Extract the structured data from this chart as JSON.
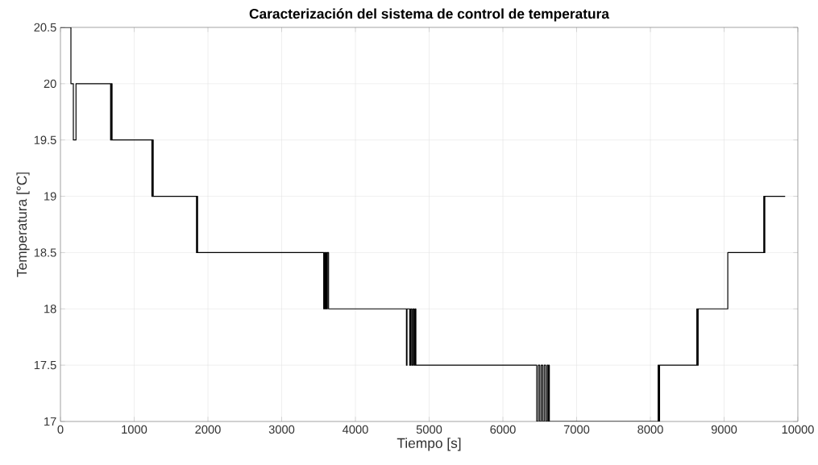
{
  "chart_data": {
    "type": "step",
    "title": "Caracterización del sistema de control de temperatura",
    "xlabel": "Tiempo [s]",
    "ylabel": "Temperatura [°C]",
    "x": [
      0,
      142,
      175,
      211,
      680,
      690,
      700,
      1240,
      1250,
      1258,
      1845,
      1852,
      1860,
      3570,
      3580,
      3590,
      3600,
      3610,
      3620,
      3636,
      4692,
      4700,
      4736,
      4750,
      4765,
      4780,
      4795,
      4808,
      4820,
      6459,
      6480,
      6500,
      6520,
      6540,
      6560,
      6580,
      6600,
      6615,
      6625,
      6630,
      8105,
      8115,
      8125,
      8630,
      8640,
      8648,
      9050,
      9538,
      9545,
      9552,
      9828
    ],
    "values": [
      20.5,
      20,
      19.5,
      20,
      19.5,
      20,
      19.5,
      19,
      19.5,
      19,
      18.5,
      19,
      18.5,
      18,
      18.5,
      18,
      18.5,
      18,
      18.5,
      18,
      17.5,
      18,
      17.5,
      18,
      17.5,
      18,
      17.5,
      18,
      17.5,
      17,
      17.5,
      17,
      17.5,
      17,
      17.5,
      17,
      17.5,
      17,
      17.5,
      17,
      17.5,
      17,
      17.5,
      18,
      17.5,
      18,
      18.5,
      19,
      18.5,
      19,
      19
    ],
    "color": "#000000",
    "xlim": [
      0,
      10000
    ],
    "ylim": [
      17,
      20.5
    ],
    "xticks": [
      0,
      1000,
      2000,
      3000,
      4000,
      5000,
      6000,
      7000,
      8000,
      9000,
      10000
    ],
    "yticks": [
      17,
      17.5,
      18,
      18.5,
      19,
      19.5,
      20,
      20.5
    ],
    "grid": true
  }
}
